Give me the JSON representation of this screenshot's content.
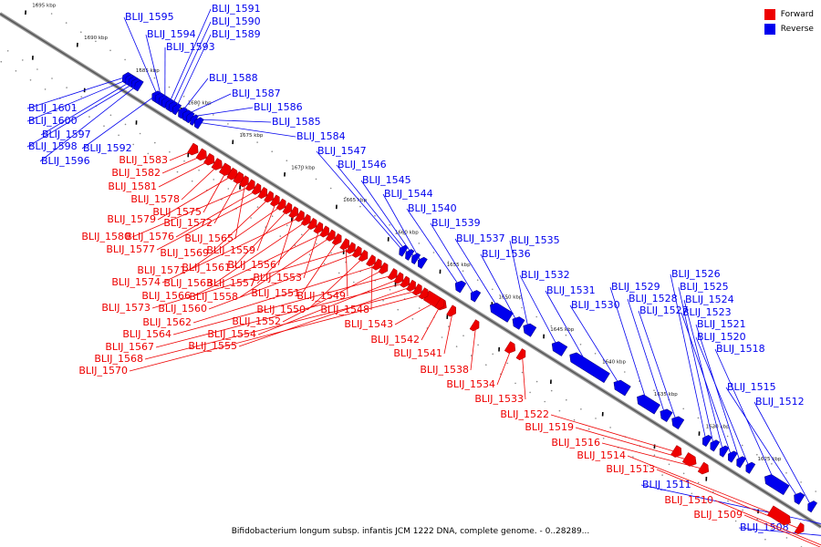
{
  "legend": {
    "forward": {
      "label": "Forward",
      "color": "#ee0000"
    },
    "reverse": {
      "label": "Reverse",
      "color": "#0000ee"
    }
  },
  "caption": "Bifidobacterium longum subsp. infantis JCM 1222 DNA, complete genome. - 0..28289...",
  "ruler": [
    "1695 kbp",
    "1690 kbp",
    "1685 kbp",
    "1680 kbp",
    "1675 kbp",
    "1670 kbp",
    "1665 kbp",
    "1660 kbp",
    "1655 kbp",
    "1650 kbp",
    "1645 kbp",
    "1640 kbp",
    "1635 kbp",
    "1630 kbp",
    "1625 kbp"
  ],
  "genes": [
    {
      "name": "BLIJ_1601",
      "strand": "reverse"
    },
    {
      "name": "BLIJ_1600",
      "strand": "reverse"
    },
    {
      "name": "BLIJ_1597",
      "strand": "reverse"
    },
    {
      "name": "BLIJ_1598",
      "strand": "reverse"
    },
    {
      "name": "BLIJ_1596",
      "strand": "reverse"
    },
    {
      "name": "BLIJ_1592",
      "strand": "reverse"
    },
    {
      "name": "BLIJ_1595",
      "strand": "reverse"
    },
    {
      "name": "BLIJ_1594",
      "strand": "reverse"
    },
    {
      "name": "BLIJ_1593",
      "strand": "reverse"
    },
    {
      "name": "BLIJ_1591",
      "strand": "reverse"
    },
    {
      "name": "BLIJ_1590",
      "strand": "reverse"
    },
    {
      "name": "BLIJ_1589",
      "strand": "reverse"
    },
    {
      "name": "BLIJ_1588",
      "strand": "reverse"
    },
    {
      "name": "BLIJ_1587",
      "strand": "reverse"
    },
    {
      "name": "BLIJ_1586",
      "strand": "reverse"
    },
    {
      "name": "BLIJ_1585",
      "strand": "reverse"
    },
    {
      "name": "BLIJ_1584",
      "strand": "reverse"
    },
    {
      "name": "BLIJ_1547",
      "strand": "reverse"
    },
    {
      "name": "BLIJ_1546",
      "strand": "reverse"
    },
    {
      "name": "BLIJ_1545",
      "strand": "reverse"
    },
    {
      "name": "BLIJ_1544",
      "strand": "reverse"
    },
    {
      "name": "BLIJ_1540",
      "strand": "reverse"
    },
    {
      "name": "BLIJ_1539",
      "strand": "reverse"
    },
    {
      "name": "BLIJ_1537",
      "strand": "reverse"
    },
    {
      "name": "BLIJ_1536",
      "strand": "reverse"
    },
    {
      "name": "BLIJ_1535",
      "strand": "reverse"
    },
    {
      "name": "BLIJ_1532",
      "strand": "reverse"
    },
    {
      "name": "BLIJ_1531",
      "strand": "reverse"
    },
    {
      "name": "BLIJ_1530",
      "strand": "reverse"
    },
    {
      "name": "BLIJ_1529",
      "strand": "reverse"
    },
    {
      "name": "BLIJ_1528",
      "strand": "reverse"
    },
    {
      "name": "BLIJ_1527",
      "strand": "reverse"
    },
    {
      "name": "BLIJ_1526",
      "strand": "reverse"
    },
    {
      "name": "BLIJ_1525",
      "strand": "reverse"
    },
    {
      "name": "BLIJ_1524",
      "strand": "reverse"
    },
    {
      "name": "BLIJ_1523",
      "strand": "reverse"
    },
    {
      "name": "BLIJ_1521",
      "strand": "reverse"
    },
    {
      "name": "BLIJ_1520",
      "strand": "reverse"
    },
    {
      "name": "BLIJ_1518",
      "strand": "reverse"
    },
    {
      "name": "BLIJ_1515",
      "strand": "reverse"
    },
    {
      "name": "BLIJ_1512",
      "strand": "reverse"
    },
    {
      "name": "BLIJ_1511",
      "strand": "reverse"
    },
    {
      "name": "BLIJ_1508",
      "strand": "reverse"
    },
    {
      "name": "BLIJ_1583",
      "strand": "forward"
    },
    {
      "name": "BLIJ_1582",
      "strand": "forward"
    },
    {
      "name": "BLIJ_1581",
      "strand": "forward"
    },
    {
      "name": "BLIJ_1578",
      "strand": "forward"
    },
    {
      "name": "BLIJ_1575",
      "strand": "forward"
    },
    {
      "name": "BLIJ_1579",
      "strand": "forward"
    },
    {
      "name": "BLIJ_1572",
      "strand": "forward"
    },
    {
      "name": "BLIJ_1565",
      "strand": "forward"
    },
    {
      "name": "BLIJ_1580",
      "strand": "forward"
    },
    {
      "name": "BLIJ_1576",
      "strand": "forward"
    },
    {
      "name": "BLIJ_1577",
      "strand": "forward"
    },
    {
      "name": "BLIJ_1569",
      "strand": "forward"
    },
    {
      "name": "BLIJ_1559",
      "strand": "forward"
    },
    {
      "name": "BLIJ_1571",
      "strand": "forward"
    },
    {
      "name": "BLIJ_1561",
      "strand": "forward"
    },
    {
      "name": "BLIJ_1556",
      "strand": "forward"
    },
    {
      "name": "BLIJ_1574",
      "strand": "forward"
    },
    {
      "name": "BLIJ_1563",
      "strand": "forward"
    },
    {
      "name": "BLIJ_1557",
      "strand": "forward"
    },
    {
      "name": "BLIJ_1553",
      "strand": "forward"
    },
    {
      "name": "BLIJ_1566",
      "strand": "forward"
    },
    {
      "name": "BLIJ_1558",
      "strand": "forward"
    },
    {
      "name": "BLIJ_1551",
      "strand": "forward"
    },
    {
      "name": "BLIJ_1549",
      "strand": "forward"
    },
    {
      "name": "BLIJ_1573",
      "strand": "forward"
    },
    {
      "name": "BLIJ_1560",
      "strand": "forward"
    },
    {
      "name": "BLIJ_1550",
      "strand": "forward"
    },
    {
      "name": "BLIJ_1548",
      "strand": "forward"
    },
    {
      "name": "BLIJ_1562",
      "strand": "forward"
    },
    {
      "name": "BLIJ_1552",
      "strand": "forward"
    },
    {
      "name": "BLIJ_1543",
      "strand": "forward"
    },
    {
      "name": "BLIJ_1564",
      "strand": "forward"
    },
    {
      "name": "BLIJ_1554",
      "strand": "forward"
    },
    {
      "name": "BLIJ_1542",
      "strand": "forward"
    },
    {
      "name": "BLIJ_1567",
      "strand": "forward"
    },
    {
      "name": "BLIJ_1555",
      "strand": "forward"
    },
    {
      "name": "BLIJ_1541",
      "strand": "forward"
    },
    {
      "name": "BLIJ_1568",
      "strand": "forward"
    },
    {
      "name": "BLIJ_1538",
      "strand": "forward"
    },
    {
      "name": "BLIJ_1570",
      "strand": "forward"
    },
    {
      "name": "BLIJ_1534",
      "strand": "forward"
    },
    {
      "name": "BLIJ_1533",
      "strand": "forward"
    },
    {
      "name": "BLIJ_1522",
      "strand": "forward"
    },
    {
      "name": "BLIJ_1519",
      "strand": "forward"
    },
    {
      "name": "BLIJ_1516",
      "strand": "forward"
    },
    {
      "name": "BLIJ_1514",
      "strand": "forward"
    },
    {
      "name": "BLIJ_1513",
      "strand": "forward"
    },
    {
      "name": "BLIJ_1510",
      "strand": "forward"
    },
    {
      "name": "BLIJ_1509",
      "strand": "forward"
    }
  ]
}
